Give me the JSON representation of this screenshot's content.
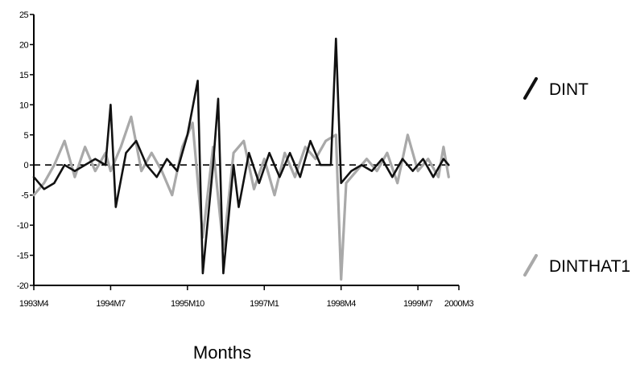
{
  "chart_data": {
    "type": "line",
    "title": "",
    "xlabel": "Months",
    "ylabel": "",
    "ylim": [
      -20,
      25
    ],
    "yticks": [
      -20,
      -15,
      -10,
      -5,
      0,
      5,
      10,
      15,
      20,
      25
    ],
    "ytick_labels": [
      "-20",
      "-15",
      "-10",
      "-5",
      "0",
      "5",
      "10",
      "15",
      "20",
      "25"
    ],
    "xlim": [
      "1993M4",
      "2000M3"
    ],
    "xticks": [
      {
        "label": "1993M4",
        "date": "1993-04"
      },
      {
        "label": "1994M7",
        "date": "1994-07"
      },
      {
        "label": "1995M10",
        "date": "1995-10"
      },
      {
        "label": "1997M1",
        "date": "1997-01"
      },
      {
        "label": "1998M4",
        "date": "1998-04"
      },
      {
        "label": "1999M7",
        "date": "1999-07"
      },
      {
        "label": "2000M3",
        "date": "2000-03"
      }
    ],
    "zero_line": "dashed",
    "grid": false,
    "legend_position": "right",
    "series": [
      {
        "name": "DINT",
        "color": "#111111",
        "points": [
          [
            "1993-04",
            -2
          ],
          [
            "1993-06",
            -4
          ],
          [
            "1993-08",
            -3
          ],
          [
            "1993-10",
            0
          ],
          [
            "1993-12",
            -1
          ],
          [
            "1994-02",
            0
          ],
          [
            "1994-04",
            1
          ],
          [
            "1994-06",
            0
          ],
          [
            "1994-07",
            10
          ],
          [
            "1994-08",
            -7
          ],
          [
            "1994-10",
            2
          ],
          [
            "1994-12",
            4
          ],
          [
            "1995-02",
            0
          ],
          [
            "1995-04",
            -2
          ],
          [
            "1995-06",
            1
          ],
          [
            "1995-08",
            -1
          ],
          [
            "1995-10",
            5
          ],
          [
            "1995-12",
            14
          ],
          [
            "1996-01",
            -18
          ],
          [
            "1996-03",
            0
          ],
          [
            "1996-04",
            11
          ],
          [
            "1996-05",
            -18
          ],
          [
            "1996-07",
            0
          ],
          [
            "1996-08",
            -7
          ],
          [
            "1996-10",
            2
          ],
          [
            "1996-12",
            -3
          ],
          [
            "1997-02",
            2
          ],
          [
            "1997-04",
            -2
          ],
          [
            "1997-06",
            2
          ],
          [
            "1997-08",
            -2
          ],
          [
            "1997-10",
            4
          ],
          [
            "1997-12",
            0
          ],
          [
            "1998-02",
            0
          ],
          [
            "1998-03",
            21
          ],
          [
            "1998-04",
            -3
          ],
          [
            "1998-06",
            -1
          ],
          [
            "1998-08",
            0
          ],
          [
            "1998-10",
            -1
          ],
          [
            "1998-12",
            1
          ],
          [
            "1999-02",
            -2
          ],
          [
            "1999-04",
            1
          ],
          [
            "1999-06",
            -1
          ],
          [
            "1999-08",
            1
          ],
          [
            "1999-10",
            -2
          ],
          [
            "1999-12",
            1
          ],
          [
            "2000-01",
            0
          ]
        ]
      },
      {
        "name": "DINTHAT1",
        "color": "#a9a9a9",
        "points": [
          [
            "1993-04",
            -5
          ],
          [
            "1993-06",
            -3
          ],
          [
            "1993-08",
            0
          ],
          [
            "1993-10",
            4
          ],
          [
            "1993-12",
            -2
          ],
          [
            "1994-02",
            3
          ],
          [
            "1994-04",
            -1
          ],
          [
            "1994-06",
            2
          ],
          [
            "1994-07",
            -1
          ],
          [
            "1994-09",
            3
          ],
          [
            "1994-11",
            8
          ],
          [
            "1995-01",
            -1
          ],
          [
            "1995-03",
            2
          ],
          [
            "1995-05",
            -1
          ],
          [
            "1995-07",
            -5
          ],
          [
            "1995-09",
            3
          ],
          [
            "1995-11",
            7
          ],
          [
            "1996-01",
            -12
          ],
          [
            "1996-03",
            3
          ],
          [
            "1996-05",
            -14
          ],
          [
            "1996-07",
            2
          ],
          [
            "1996-09",
            4
          ],
          [
            "1996-11",
            -4
          ],
          [
            "1997-01",
            1
          ],
          [
            "1997-03",
            -5
          ],
          [
            "1997-05",
            2
          ],
          [
            "1997-07",
            -2
          ],
          [
            "1997-09",
            3
          ],
          [
            "1997-11",
            1
          ],
          [
            "1998-01",
            4
          ],
          [
            "1998-03",
            5
          ],
          [
            "1998-04",
            -19
          ],
          [
            "1998-05",
            -3
          ],
          [
            "1998-07",
            -1
          ],
          [
            "1998-09",
            1
          ],
          [
            "1998-11",
            -1
          ],
          [
            "1999-01",
            2
          ],
          [
            "1999-03",
            -3
          ],
          [
            "1999-05",
            5
          ],
          [
            "1999-07",
            -1
          ],
          [
            "1999-09",
            1
          ],
          [
            "1999-11",
            -2
          ],
          [
            "1999-12",
            3
          ],
          [
            "2000-01",
            -2
          ]
        ]
      }
    ]
  }
}
